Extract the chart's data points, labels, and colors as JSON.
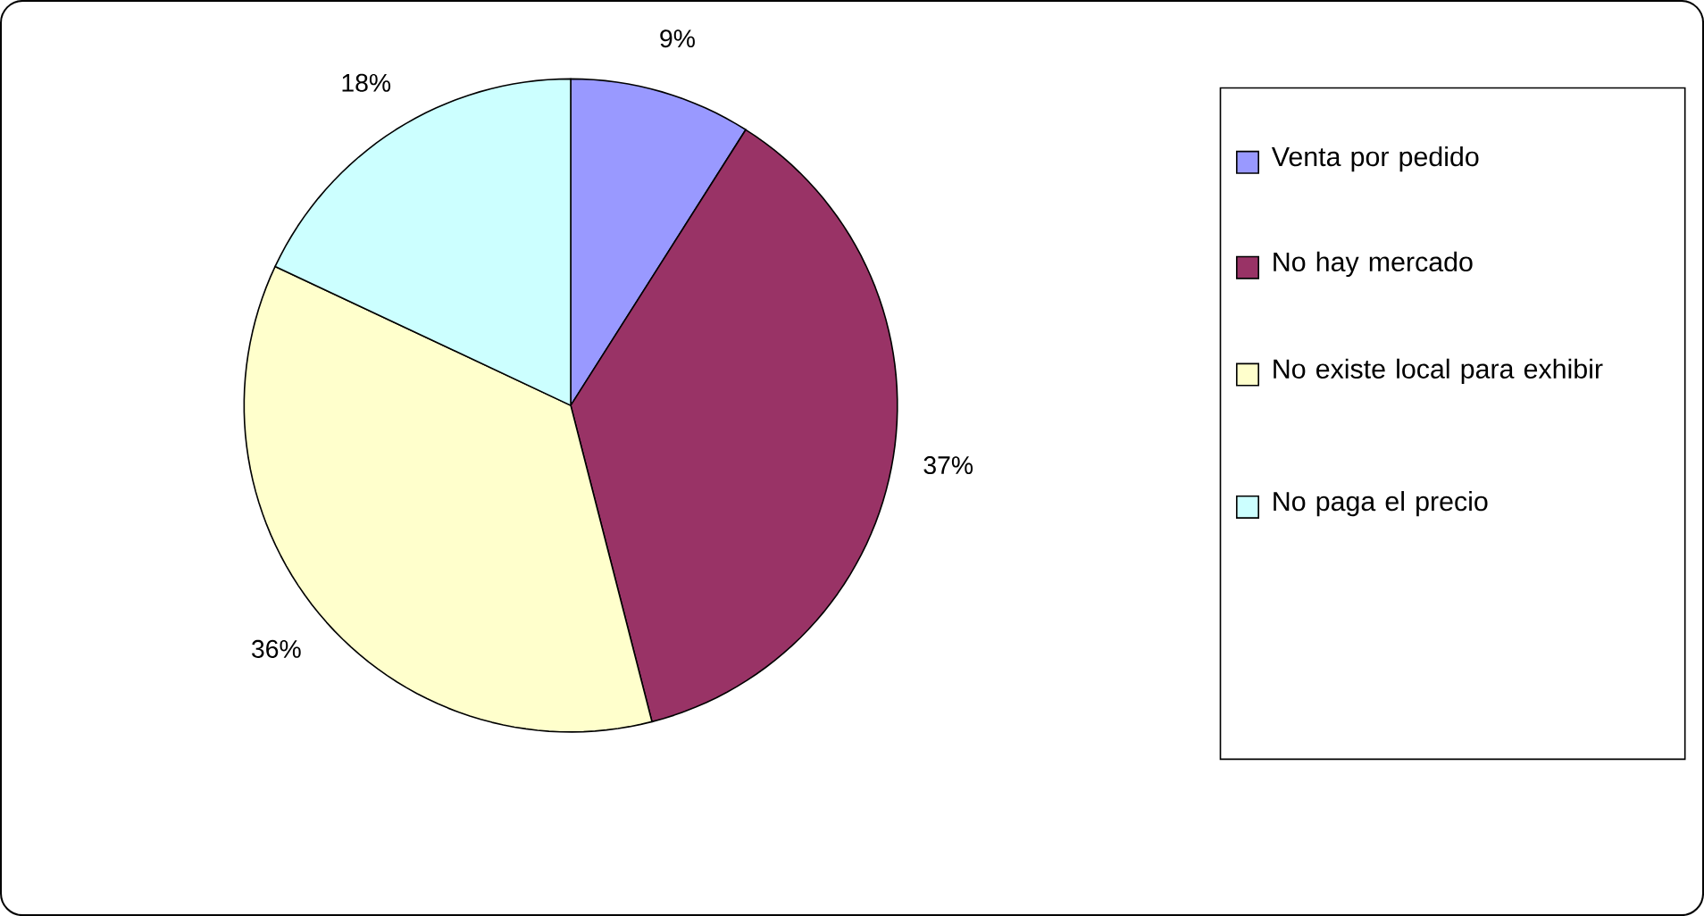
{
  "chart_data": {
    "type": "pie",
    "categories": [
      "Venta por pedido",
      "No hay mercado",
      "No existe local para exhibir",
      "No paga el precio"
    ],
    "values": [
      9,
      37,
      36,
      18
    ],
    "value_labels": [
      "9%",
      "37%",
      "36%",
      "18%"
    ],
    "colors": [
      "#9999ff",
      "#993366",
      "#ffffcc",
      "#ccffff"
    ],
    "legend": "right"
  }
}
